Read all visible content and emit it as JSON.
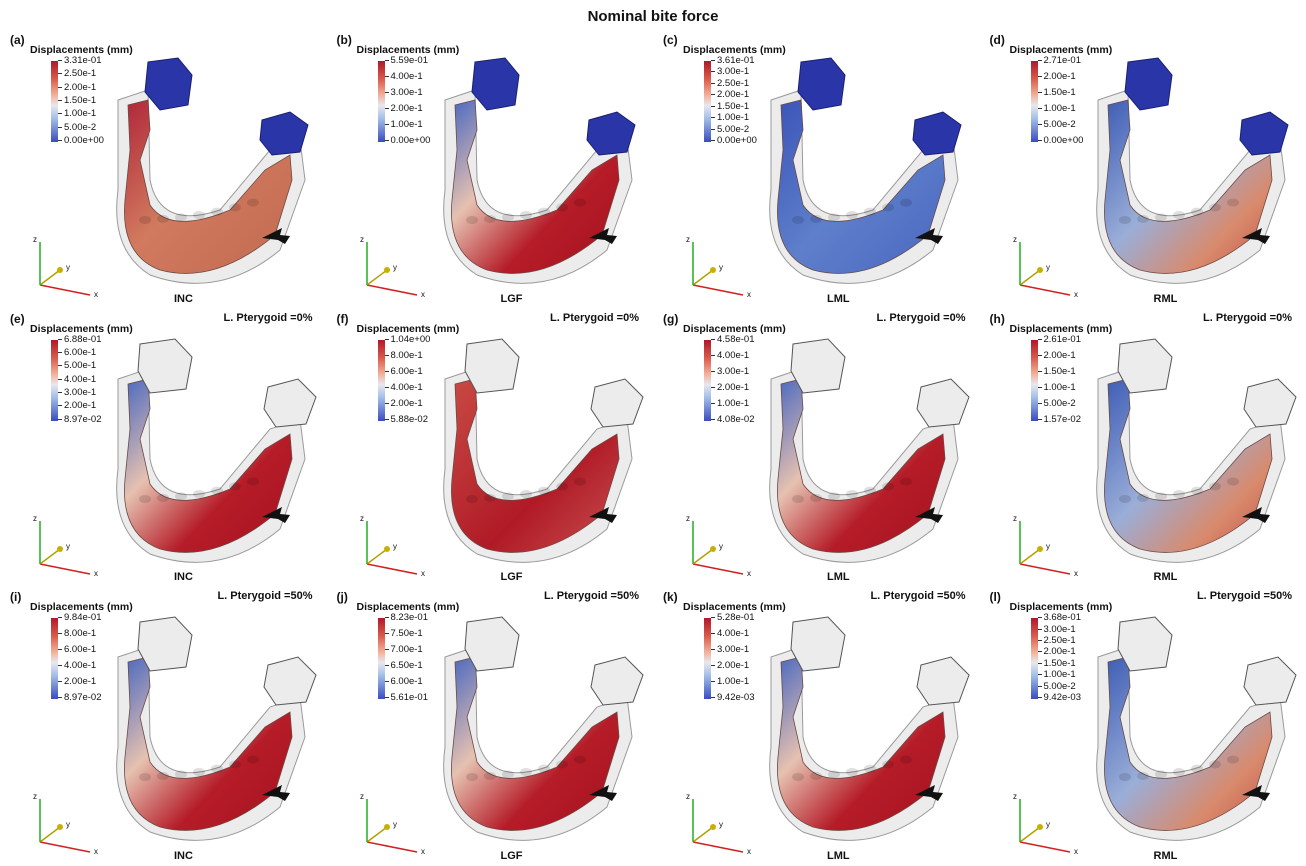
{
  "title": "Nominal bite force",
  "colorbar_title": "Displacements (mm)",
  "axes_labels": {
    "x": "x",
    "y": "y",
    "z": "z"
  },
  "panels": [
    {
      "label": "(a)",
      "case": "INC",
      "pterygoid": "",
      "ticks": [
        "3.31e-01",
        "2.50e-1",
        "2.00e-1",
        "1.50e-1",
        "1.00e-1",
        "5.00e-2",
        "0.00e+00"
      ],
      "fixture": "blue",
      "map": "gradient-red-lower"
    },
    {
      "label": "(b)",
      "case": "LGF",
      "pterygoid": "",
      "ticks": [
        "5.59e-01",
        "4.00e-1",
        "3.00e-1",
        "2.00e-1",
        "1.00e-1",
        "0.00e+00"
      ],
      "fixture": "blue",
      "map": "red"
    },
    {
      "label": "(c)",
      "case": "LML",
      "pterygoid": "",
      "ticks": [
        "3.61e-01",
        "3.00e-1",
        "2.50e-1",
        "2.00e-1",
        "1.50e-1",
        "1.00e-1",
        "5.00e-2",
        "0.00e+00"
      ],
      "fixture": "blue",
      "map": "blue"
    },
    {
      "label": "(d)",
      "case": "RML",
      "pterygoid": "",
      "ticks": [
        "2.71e-01",
        "2.00e-1",
        "1.50e-1",
        "1.00e-1",
        "5.00e-2",
        "0.00e+00"
      ],
      "fixture": "blue",
      "map": "gradient-right"
    },
    {
      "label": "(e)",
      "case": "INC",
      "pterygoid": "L. Pterygoid =0%",
      "ticks": [
        "6.88e-01",
        "6.00e-1",
        "5.00e-1",
        "4.00e-1",
        "3.00e-1",
        "2.00e-1",
        "8.97e-02"
      ],
      "fixture": "mesh",
      "map": "red"
    },
    {
      "label": "(f)",
      "case": "LGF",
      "pterygoid": "L. Pterygoid =0%",
      "ticks": [
        "1.04e+00",
        "8.00e-1",
        "6.00e-1",
        "4.00e-1",
        "2.00e-1",
        "5.88e-02"
      ],
      "fixture": "mesh",
      "map": "red-light"
    },
    {
      "label": "(g)",
      "case": "LML",
      "pterygoid": "L. Pterygoid =0%",
      "ticks": [
        "4.58e-01",
        "4.00e-1",
        "3.00e-1",
        "2.00e-1",
        "1.00e-1",
        "4.08e-02"
      ],
      "fixture": "mesh",
      "map": "red"
    },
    {
      "label": "(h)",
      "case": "RML",
      "pterygoid": "L. Pterygoid =0%",
      "ticks": [
        "2.61e-01",
        "2.00e-1",
        "1.50e-1",
        "1.00e-1",
        "5.00e-2",
        "1.57e-02"
      ],
      "fixture": "mesh",
      "map": "gradient-right"
    },
    {
      "label": "(i)",
      "case": "INC",
      "pterygoid": "L. Pterygoid =50%",
      "ticks": [
        "9.84e-01",
        "8.00e-1",
        "6.00e-1",
        "4.00e-1",
        "2.00e-1",
        "8.97e-02"
      ],
      "fixture": "mesh",
      "map": "red"
    },
    {
      "label": "(j)",
      "case": "LGF",
      "pterygoid": "L. Pterygoid =50%",
      "ticks": [
        "8.23e-01",
        "7.50e-1",
        "7.00e-1",
        "6.50e-1",
        "6.00e-1",
        "5.61e-01"
      ],
      "fixture": "mesh",
      "map": "red"
    },
    {
      "label": "(k)",
      "case": "LML",
      "pterygoid": "L. Pterygoid =50%",
      "ticks": [
        "5.28e-01",
        "4.00e-1",
        "3.00e-1",
        "2.00e-1",
        "1.00e-1",
        "9.42e-03"
      ],
      "fixture": "mesh",
      "map": "red"
    },
    {
      "label": "(l)",
      "case": "RML",
      "pterygoid": "L. Pterygoid =50%",
      "ticks": [
        "3.68e-01",
        "3.00e-1",
        "2.50e-1",
        "2.00e-1",
        "1.50e-1",
        "1.00e-1",
        "5.00e-2",
        "9.42e-03"
      ],
      "fixture": "mesh",
      "map": "gradient-right"
    }
  ]
}
